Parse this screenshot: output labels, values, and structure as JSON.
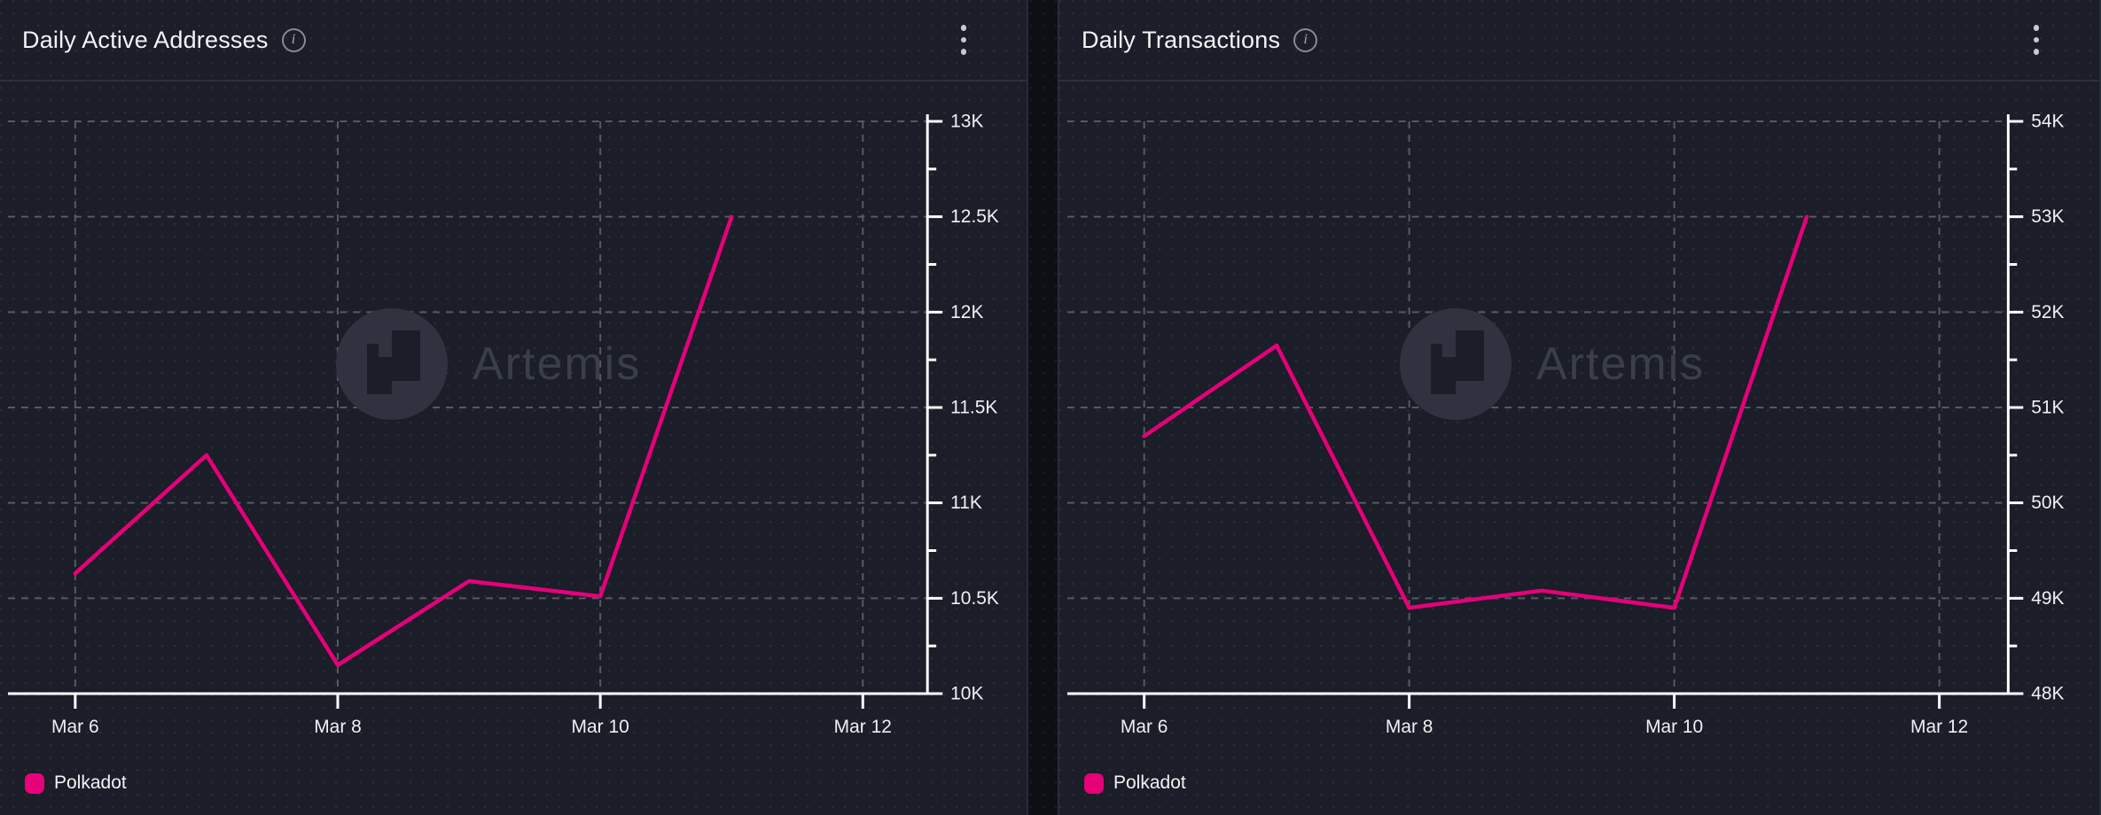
{
  "watermark": {
    "text": "Artemis"
  },
  "colors": {
    "accent": "#E6007A",
    "panel_bg": "#1B1D28",
    "gap_bg": "#0E0F15",
    "grid": "#565A64",
    "axis": "#FFFFFF",
    "label": "#EEF0F3"
  },
  "panels": [
    {
      "title": "Daily Active Addresses",
      "legend": {
        "label": "Polkadot",
        "color": "#E6007A"
      },
      "y_axis_ticks": [
        "13K",
        "12.5K",
        "12K",
        "11.5K",
        "11K",
        "10.5K",
        "10K"
      ],
      "x_axis_ticks": [
        "Mar 6",
        "Mar 8",
        "Mar 10",
        "Mar 12"
      ]
    },
    {
      "title": "Daily Transactions",
      "legend": {
        "label": "Polkadot",
        "color": "#E6007A"
      },
      "y_axis_ticks": [
        "54K",
        "53K",
        "52K",
        "51K",
        "50K",
        "49K",
        "48K"
      ],
      "x_axis_ticks": [
        "Mar 6",
        "Mar 8",
        "Mar 10",
        "Mar 12"
      ]
    }
  ],
  "chart_data": [
    {
      "type": "line",
      "title": "Daily Active Addresses",
      "x": [
        "Mar 6",
        "Mar 7",
        "Mar 8",
        "Mar 9",
        "Mar 10",
        "Mar 11"
      ],
      "series": [
        {
          "name": "Polkadot",
          "color": "#E6007A",
          "values": [
            10630,
            11250,
            10150,
            10590,
            10510,
            12500
          ]
        }
      ],
      "ylim": [
        10000,
        13000
      ],
      "y_tick_step": 500,
      "x_tick_labels": [
        "Mar 6",
        "Mar 8",
        "Mar 10",
        "Mar 12"
      ],
      "grid": "dashed",
      "y_axis_side": "right",
      "legend_position": "bottom-left"
    },
    {
      "type": "line",
      "title": "Daily Transactions",
      "x": [
        "Mar 6",
        "Mar 7",
        "Mar 8",
        "Mar 9",
        "Mar 10",
        "Mar 11"
      ],
      "series": [
        {
          "name": "Polkadot",
          "color": "#E6007A",
          "values": [
            50700,
            51650,
            48900,
            49080,
            48900,
            53000
          ]
        }
      ],
      "ylim": [
        48000,
        54000
      ],
      "y_tick_step": 1000,
      "x_tick_labels": [
        "Mar 6",
        "Mar 8",
        "Mar 10",
        "Mar 12"
      ],
      "grid": "dashed",
      "y_axis_side": "right",
      "legend_position": "bottom-left"
    }
  ]
}
